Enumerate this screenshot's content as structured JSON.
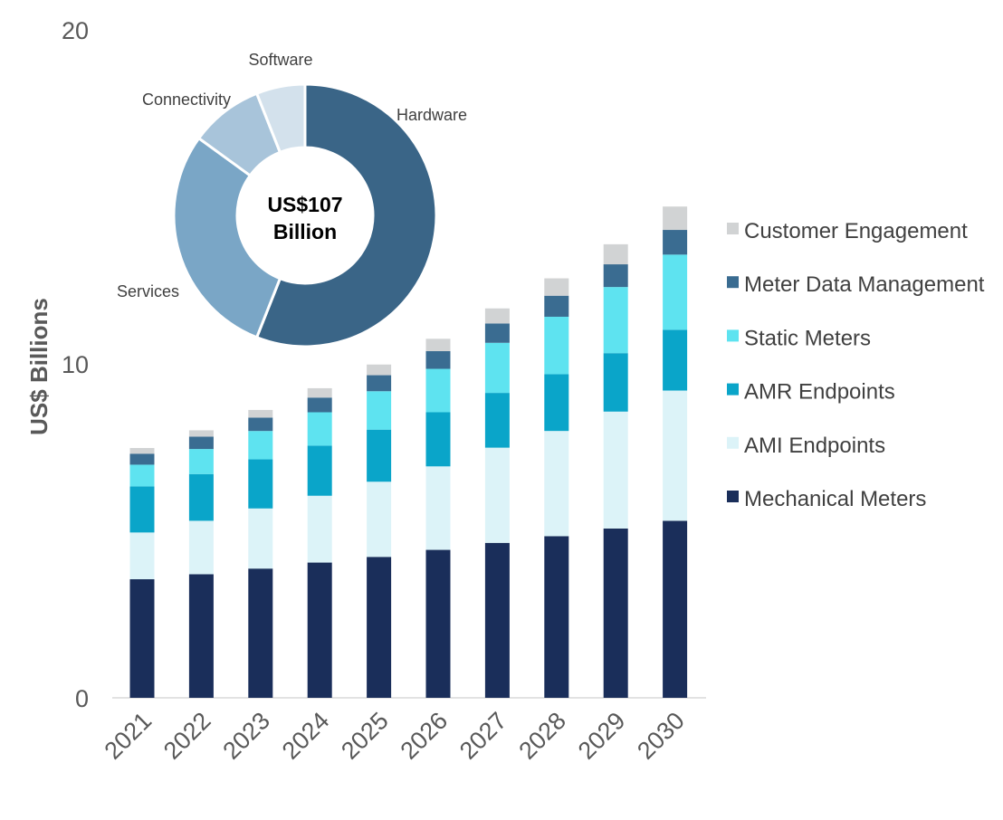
{
  "chart_data": [
    {
      "type": "bar",
      "stacked": true,
      "ylabel": "US$ Billions",
      "ylim": [
        0,
        20
      ],
      "yticks": [
        "0",
        "10",
        "20"
      ],
      "categories": [
        "2021",
        "2022",
        "2023",
        "2024",
        "2025",
        "2026",
        "2027",
        "2028",
        "2029",
        "2030"
      ],
      "grid": false,
      "legend_position": "right",
      "series": [
        {
          "name": "Mechanical Meters",
          "color": "#1a2e5a",
          "values": [
            3.55,
            3.7,
            3.87,
            4.05,
            4.22,
            4.43,
            4.64,
            4.84,
            5.07,
            5.3
          ]
        },
        {
          "name": "AMI Endpoints",
          "color": "#dcf3f8",
          "values": [
            1.4,
            1.6,
            1.8,
            2.0,
            2.25,
            2.5,
            2.85,
            3.15,
            3.5,
            3.9
          ]
        },
        {
          "name": "AMR Endpoints",
          "color": "#0aa5c9",
          "values": [
            1.38,
            1.4,
            1.47,
            1.5,
            1.56,
            1.62,
            1.64,
            1.7,
            1.75,
            1.82
          ]
        },
        {
          "name": "Static Meters",
          "color": "#5ee3f0",
          "values": [
            0.65,
            0.75,
            0.85,
            1.0,
            1.15,
            1.3,
            1.5,
            1.72,
            1.98,
            2.25
          ]
        },
        {
          "name": "Meter Data Management",
          "color": "#3a6c91",
          "values": [
            0.33,
            0.37,
            0.4,
            0.44,
            0.48,
            0.53,
            0.58,
            0.63,
            0.68,
            0.74
          ]
        },
        {
          "name": "Customer Engagement",
          "color": "#d1d3d4",
          "values": [
            0.17,
            0.19,
            0.23,
            0.28,
            0.32,
            0.37,
            0.45,
            0.52,
            0.6,
            0.7
          ]
        }
      ]
    },
    {
      "type": "pie",
      "donut": true,
      "center_label": [
        "US$107",
        "Billion"
      ],
      "categories": [
        "Hardware",
        "Services",
        "Connectivity",
        "Software"
      ],
      "values": [
        56,
        29,
        9,
        6
      ],
      "colors": [
        "#3a6587",
        "#7aa6c6",
        "#a8c4da",
        "#d3e1ec"
      ]
    }
  ]
}
